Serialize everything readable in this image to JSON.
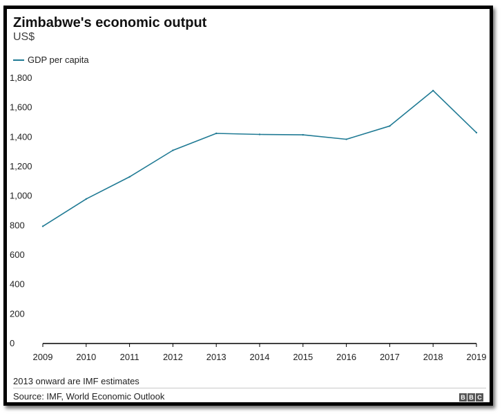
{
  "header": {
    "title": "Zimbabwe's economic output",
    "subtitle": "US$"
  },
  "footer": {
    "note": "2013 onward are IMF estimates",
    "source": "Source: IMF, World Economic Outlook",
    "logo_letters": [
      "B",
      "B",
      "C"
    ]
  },
  "colors": {
    "line": "#1f7a94",
    "axis": "#000000",
    "text": "#222222"
  },
  "chart_data": {
    "type": "line",
    "title": "Zimbabwe's economic output",
    "subtitle": "US$",
    "x": [
      "2009",
      "2010",
      "2011",
      "2012",
      "2013",
      "2014",
      "2015",
      "2016",
      "2017",
      "2018",
      "2019"
    ],
    "series": [
      {
        "name": "GDP per capita",
        "values": [
          795,
          980,
          1130,
          1310,
          1425,
          1418,
          1415,
          1385,
          1475,
          1715,
          1430
        ]
      }
    ],
    "yticks": [
      0,
      200,
      400,
      600,
      800,
      1000,
      1200,
      1400,
      1600,
      1800
    ],
    "ytick_labels": [
      "0",
      "200",
      "400",
      "600",
      "800",
      "1,000",
      "1,200",
      "1,400",
      "1,600",
      "1,800"
    ],
    "ylim": [
      0,
      1800
    ],
    "grid": false,
    "legend": "top-left"
  }
}
